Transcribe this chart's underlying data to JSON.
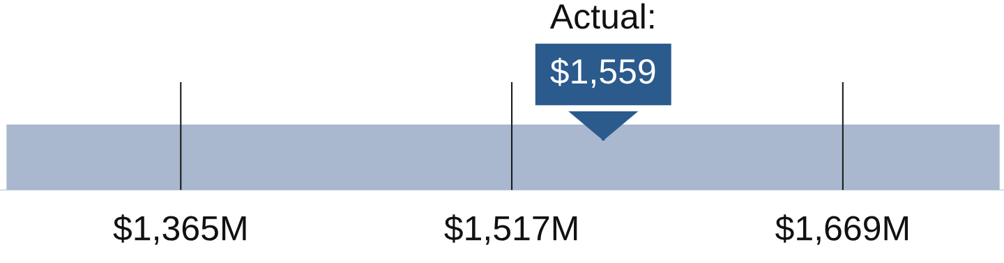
{
  "chart_data": {
    "type": "bar",
    "orientation": "horizontal",
    "categories": [
      null
    ],
    "base": [
      1285
    ],
    "values": [
      456
    ],
    "colors": [
      "#a9b7cf"
    ],
    "xlim": [
      1282,
      1743
    ],
    "xticks": [
      {
        "value": 1365,
        "label": "$1,365M"
      },
      {
        "value": 1517,
        "label": "$1,517M"
      },
      {
        "value": 1669,
        "label": "$1,669M"
      }
    ],
    "grid": "x",
    "ref_lines": [
      {
        "axis": "x",
        "value": 1559,
        "label": "Actual:\n$1,559",
        "color": "#2b5a8c"
      }
    ]
  }
}
